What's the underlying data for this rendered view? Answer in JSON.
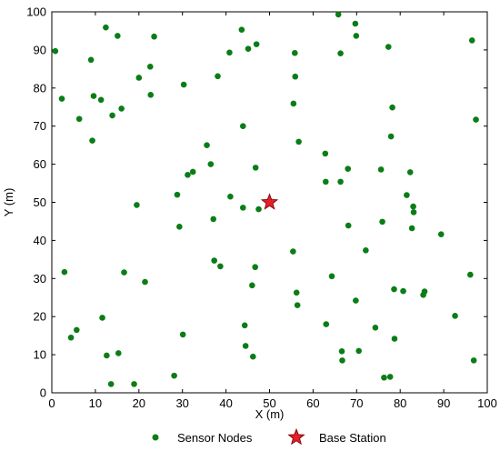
{
  "chart_data": {
    "type": "scatter",
    "xlabel": "X (m)",
    "ylabel": "Y (m)",
    "xlim": [
      0,
      100
    ],
    "ylim": [
      0,
      100
    ],
    "xticks": [
      0,
      10,
      20,
      30,
      40,
      50,
      60,
      70,
      80,
      90,
      100
    ],
    "yticks": [
      0,
      10,
      20,
      30,
      40,
      50,
      60,
      70,
      80,
      90,
      100
    ],
    "grid": false,
    "legend_position": "bottom",
    "legend": [
      {
        "label": "Sensor Nodes",
        "marker": "circle",
        "color": "#0a7d16"
      },
      {
        "label": "Base Station",
        "marker": "star",
        "color": "#e0202a"
      }
    ],
    "series": [
      {
        "name": "Sensor Nodes",
        "marker": "circle",
        "color": "#0a7d16",
        "points": [
          [
            0.8,
            89.7
          ],
          [
            2.3,
            77.2
          ],
          [
            2.9,
            31.7
          ],
          [
            4.4,
            14.5
          ],
          [
            5.7,
            16.5
          ],
          [
            6.3,
            71.9
          ],
          [
            9.0,
            87.4
          ],
          [
            9.3,
            66.2
          ],
          [
            9.6,
            77.9
          ],
          [
            11.3,
            76.9
          ],
          [
            11.6,
            19.7
          ],
          [
            12.4,
            95.9
          ],
          [
            12.6,
            9.8
          ],
          [
            13.6,
            2.3
          ],
          [
            13.9,
            72.8
          ],
          [
            15.1,
            93.7
          ],
          [
            15.3,
            10.4
          ],
          [
            16.0,
            74.6
          ],
          [
            16.6,
            31.6
          ],
          [
            18.9,
            2.3
          ],
          [
            19.5,
            49.3
          ],
          [
            20.0,
            82.7
          ],
          [
            21.4,
            29.1
          ],
          [
            22.6,
            85.6
          ],
          [
            22.7,
            78.2
          ],
          [
            23.5,
            93.5
          ],
          [
            28.1,
            4.5
          ],
          [
            28.8,
            52.0
          ],
          [
            29.3,
            43.6
          ],
          [
            30.1,
            15.3
          ],
          [
            30.3,
            80.9
          ],
          [
            31.2,
            57.2
          ],
          [
            32.4,
            58.0
          ],
          [
            35.6,
            65.0
          ],
          [
            36.5,
            60.0
          ],
          [
            37.1,
            45.6
          ],
          [
            37.3,
            34.7
          ],
          [
            38.1,
            83.1
          ],
          [
            38.7,
            33.2
          ],
          [
            40.8,
            89.3
          ],
          [
            41.0,
            51.5
          ],
          [
            43.6,
            95.3
          ],
          [
            43.9,
            70.0
          ],
          [
            43.9,
            48.6
          ],
          [
            44.3,
            17.7
          ],
          [
            44.5,
            12.3
          ],
          [
            45.1,
            90.3
          ],
          [
            46.0,
            28.2
          ],
          [
            46.2,
            9.5
          ],
          [
            46.7,
            33.0
          ],
          [
            46.8,
            59.1
          ],
          [
            47.0,
            91.5
          ],
          [
            47.5,
            48.2
          ],
          [
            55.4,
            37.1
          ],
          [
            55.5,
            75.9
          ],
          [
            55.8,
            89.2
          ],
          [
            55.9,
            83.0
          ],
          [
            56.2,
            26.3
          ],
          [
            56.4,
            23.0
          ],
          [
            56.7,
            65.9
          ],
          [
            62.8,
            62.8
          ],
          [
            62.9,
            55.4
          ],
          [
            63.0,
            18.0
          ],
          [
            64.3,
            30.6
          ],
          [
            65.8,
            99.3
          ],
          [
            66.3,
            89.1
          ],
          [
            66.3,
            55.4
          ],
          [
            66.6,
            10.9
          ],
          [
            66.7,
            8.5
          ],
          [
            68.0,
            58.8
          ],
          [
            68.1,
            43.9
          ],
          [
            69.7,
            96.9
          ],
          [
            69.8,
            24.2
          ],
          [
            69.9,
            93.7
          ],
          [
            70.5,
            11.0
          ],
          [
            72.1,
            37.4
          ],
          [
            74.3,
            17.1
          ],
          [
            75.6,
            58.6
          ],
          [
            75.9,
            44.9
          ],
          [
            76.3,
            4.0
          ],
          [
            77.3,
            90.8
          ],
          [
            77.7,
            4.2
          ],
          [
            77.9,
            67.3
          ],
          [
            78.2,
            74.9
          ],
          [
            78.6,
            27.2
          ],
          [
            78.7,
            14.2
          ],
          [
            80.7,
            26.7
          ],
          [
            81.5,
            51.9
          ],
          [
            82.3,
            57.9
          ],
          [
            82.7,
            43.2
          ],
          [
            83.0,
            48.9
          ],
          [
            83.1,
            47.4
          ],
          [
            85.3,
            25.7
          ],
          [
            85.6,
            26.6
          ],
          [
            89.4,
            41.6
          ],
          [
            92.6,
            20.2
          ],
          [
            96.1,
            31.0
          ],
          [
            96.5,
            92.5
          ],
          [
            96.9,
            8.5
          ],
          [
            97.4,
            71.7
          ]
        ]
      },
      {
        "name": "Base Station",
        "marker": "star",
        "color": "#e0202a",
        "points": [
          [
            50,
            50
          ]
        ]
      }
    ]
  }
}
